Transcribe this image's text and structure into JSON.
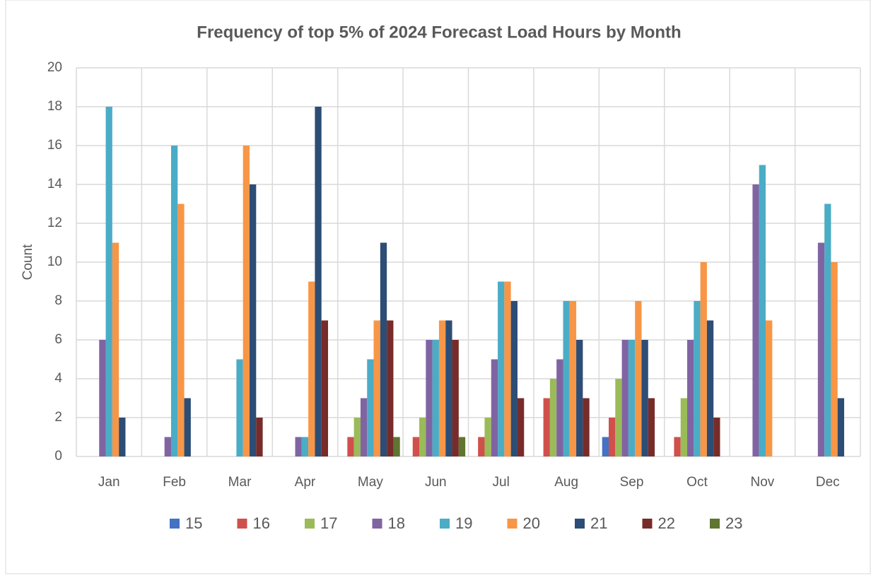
{
  "chart_data": {
    "type": "bar",
    "title": "Frequency of top 5% of 2024 Forecast Load Hours by Month",
    "y_label": "Count",
    "categories": [
      "Jan",
      "Feb",
      "Mar",
      "Apr",
      "May",
      "Jun",
      "Jul",
      "Aug",
      "Sep",
      "Oct",
      "Nov",
      "Dec"
    ],
    "series": [
      {
        "name": "15",
        "color": "#4472c4",
        "values": [
          0,
          0,
          0,
          0,
          0,
          0,
          0,
          0,
          1,
          0,
          0,
          0
        ]
      },
      {
        "name": "16",
        "color": "#d0504c",
        "values": [
          0,
          0,
          0,
          0,
          1,
          1,
          1,
          3,
          2,
          1,
          0,
          0
        ]
      },
      {
        "name": "17",
        "color": "#9bbb59",
        "values": [
          0,
          0,
          0,
          0,
          2,
          2,
          2,
          4,
          4,
          3,
          0,
          0
        ]
      },
      {
        "name": "18",
        "color": "#8064a2",
        "values": [
          6,
          1,
          0,
          1,
          3,
          6,
          5,
          5,
          6,
          6,
          14,
          11
        ]
      },
      {
        "name": "19",
        "color": "#4bacc6",
        "values": [
          18,
          16,
          5,
          1,
          5,
          6,
          9,
          8,
          6,
          8,
          15,
          13
        ]
      },
      {
        "name": "20",
        "color": "#f79646",
        "values": [
          11,
          13,
          16,
          9,
          7,
          7,
          9,
          8,
          8,
          10,
          7,
          10
        ]
      },
      {
        "name": "21",
        "color": "#2c4d75",
        "values": [
          2,
          3,
          14,
          18,
          11,
          7,
          8,
          6,
          6,
          7,
          0,
          3
        ]
      },
      {
        "name": "22",
        "color": "#772c2a",
        "values": [
          0,
          0,
          2,
          7,
          7,
          6,
          3,
          3,
          3,
          2,
          0,
          0
        ]
      },
      {
        "name": "23",
        "color": "#5f7530",
        "values": [
          0,
          0,
          0,
          0,
          1,
          1,
          0,
          0,
          0,
          0,
          0,
          0
        ]
      }
    ],
    "ylim": [
      0,
      20
    ],
    "yticks": [
      0,
      2,
      4,
      6,
      8,
      10,
      12,
      14,
      16,
      18,
      20
    ],
    "grid": true,
    "vertical_grid": true,
    "legend": "bottom"
  }
}
